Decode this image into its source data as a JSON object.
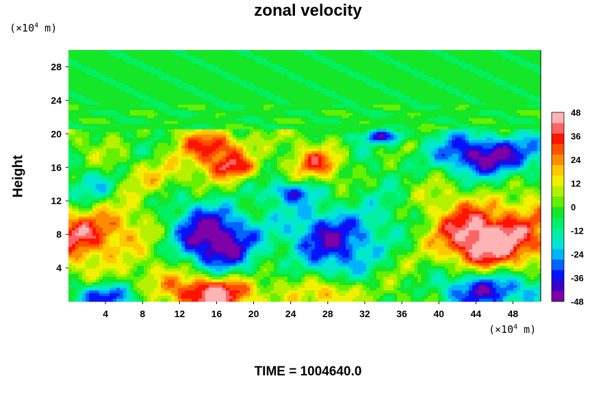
{
  "chart_data": {
    "type": "heatmap",
    "title": "zonal velocity",
    "ylabel": "Height",
    "x_unit": {
      "prefix": "(×10",
      "exp": "4",
      "suffix": " m)"
    },
    "y_unit": {
      "prefix": "(×10",
      "exp": "4",
      "suffix": " m)"
    },
    "xlim": [
      0,
      51
    ],
    "ylim": [
      0,
      30
    ],
    "x_ticks": [
      4,
      8,
      12,
      16,
      20,
      24,
      28,
      32,
      36,
      40,
      44,
      48
    ],
    "y_ticks": [
      4,
      8,
      12,
      16,
      20,
      24,
      28
    ],
    "colorbar": {
      "min": -48,
      "max": 48,
      "ticks": [
        48,
        36,
        24,
        12,
        0,
        -12,
        -24,
        -36,
        -48
      ],
      "colors": [
        "#7d00a8",
        "#3c00c8",
        "#0014ff",
        "#0064ff",
        "#00b4ff",
        "#00e6d2",
        "#00f0a0",
        "#00f064",
        "#14e628",
        "#64f000",
        "#b4f000",
        "#f0f000",
        "#ffc800",
        "#ff8c00",
        "#ff5000",
        "#ff1400",
        "#ff6464",
        "#ffb4b4"
      ]
    },
    "features": [
      {
        "x": 2,
        "y": 8,
        "value": 40,
        "sx": 3.5,
        "sy": 2.2
      },
      {
        "x": 16,
        "y": 7.5,
        "value": -48,
        "sx": 3.5,
        "sy": 2.8
      },
      {
        "x": 16,
        "y": 1,
        "value": 48,
        "sx": 3.5,
        "sy": 1.5
      },
      {
        "x": 3.5,
        "y": 0.5,
        "value": -40,
        "sx": 2.5,
        "sy": 1.2
      },
      {
        "x": 29.5,
        "y": 7.5,
        "value": -38,
        "sx": 4,
        "sy": 3
      },
      {
        "x": 29,
        "y": 1,
        "value": 26,
        "sx": 2,
        "sy": 1.3
      },
      {
        "x": 46,
        "y": 7.5,
        "value": 50,
        "sx": 5,
        "sy": 3
      },
      {
        "x": 46,
        "y": 1.5,
        "value": -44,
        "sx": 4,
        "sy": 1.8
      },
      {
        "x": 46,
        "y": 17.5,
        "value": -44,
        "sx": 5,
        "sy": 1.8
      },
      {
        "x": 16,
        "y": 18.5,
        "value": 34,
        "sx": 2.5,
        "sy": 1.3
      },
      {
        "x": 18,
        "y": 16,
        "value": 30,
        "sx": 2.2,
        "sy": 1.0
      },
      {
        "x": 27,
        "y": 16.5,
        "value": 26,
        "sx": 2,
        "sy": 1.2
      },
      {
        "x": 10,
        "y": 15,
        "value": 18,
        "sx": 2.5,
        "sy": 1.5
      },
      {
        "x": 34,
        "y": 19.7,
        "value": -34,
        "sx": 1.8,
        "sy": 0.6
      },
      {
        "x": 24,
        "y": 13,
        "value": -26,
        "sx": 2,
        "sy": 0.8
      },
      {
        "x": 3,
        "y": 14,
        "value": -20,
        "sx": 2,
        "sy": 1.5
      },
      {
        "x": 8,
        "y": 3,
        "value": 12,
        "sx": 3,
        "sy": 2
      }
    ]
  },
  "footer": {
    "time_label": "TIME = 1004640.0"
  }
}
